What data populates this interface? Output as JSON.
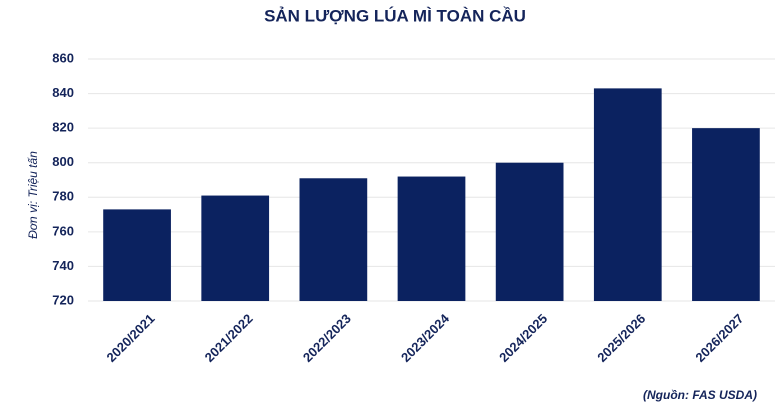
{
  "chart_data": {
    "type": "bar",
    "title": "SẢN LƯỢNG LÚA MÌ TOÀN CẦU",
    "y_label": "Đơn vị: Triệu tấn",
    "source": "(Nguồn: FAS USDA)",
    "categories": [
      "2020/2021",
      "2021/2022",
      "2022/2023",
      "2023/2024",
      "2024/2025",
      "2025/2026",
      "2026/2027"
    ],
    "values": [
      773,
      781,
      791,
      792,
      800,
      843,
      820
    ],
    "color": "#0b2260",
    "ylim": [
      720,
      860
    ],
    "yticks": [
      720,
      740,
      760,
      780,
      800,
      820,
      840,
      860
    ],
    "grid": true
  }
}
